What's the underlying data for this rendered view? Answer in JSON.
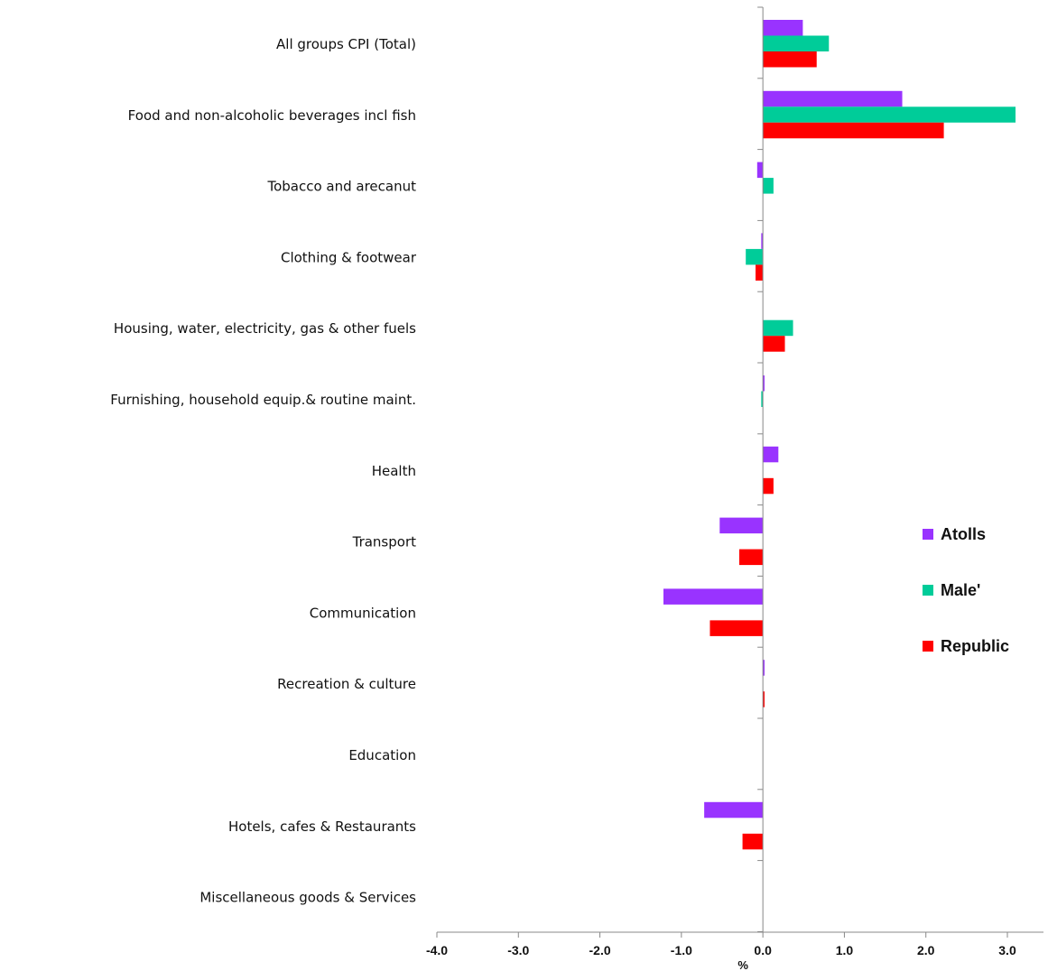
{
  "chart_data": {
    "type": "bar",
    "orientation": "horizontal",
    "categories": [
      "All groups CPI (Total)",
      "Food and non-alcoholic beverages incl fish",
      "Tobacco and arecanut",
      "Clothing & footwear",
      "Housing, water, electricity, gas & other fuels",
      "Furnishing, household equip.& routine maint.",
      "Health",
      "Transport",
      "Communication",
      "Recreation & culture",
      "Education",
      "Hotels, cafes & Restaurants",
      "Miscellaneous goods & Services"
    ],
    "series": [
      {
        "name": "Atolls",
        "color": "#9933ff",
        "values": [
          0.49,
          1.71,
          -0.07,
          -0.02,
          0.0,
          0.02,
          0.19,
          -0.53,
          -1.22,
          0.02,
          0.0,
          -0.72,
          0.0
        ]
      },
      {
        "name": "Male'",
        "color": "#00cc99",
        "values": [
          0.81,
          3.1,
          0.13,
          -0.21,
          0.37,
          -0.02,
          0.0,
          0.0,
          0.0,
          0.0,
          0.0,
          0.0,
          0.0
        ]
      },
      {
        "name": "Republic",
        "color": "#ff0000",
        "values": [
          0.66,
          2.22,
          0.0,
          -0.09,
          0.27,
          0.0,
          0.13,
          -0.29,
          -0.65,
          0.02,
          0.0,
          -0.25,
          0.0
        ]
      }
    ],
    "xlim": [
      -4.0,
      3.0
    ],
    "xticks": [
      -4.0,
      -3.0,
      -2.0,
      -1.0,
      0.0,
      1.0,
      2.0,
      3.0
    ],
    "xtick_labels": [
      "-4.0",
      "-3.0",
      "-2.0",
      "-1.0",
      "0.0",
      "1.0",
      "2.0",
      "3.0"
    ],
    "xlabel": "%",
    "ylabel": "",
    "title": "",
    "grid": false,
    "legend_position": "right"
  }
}
